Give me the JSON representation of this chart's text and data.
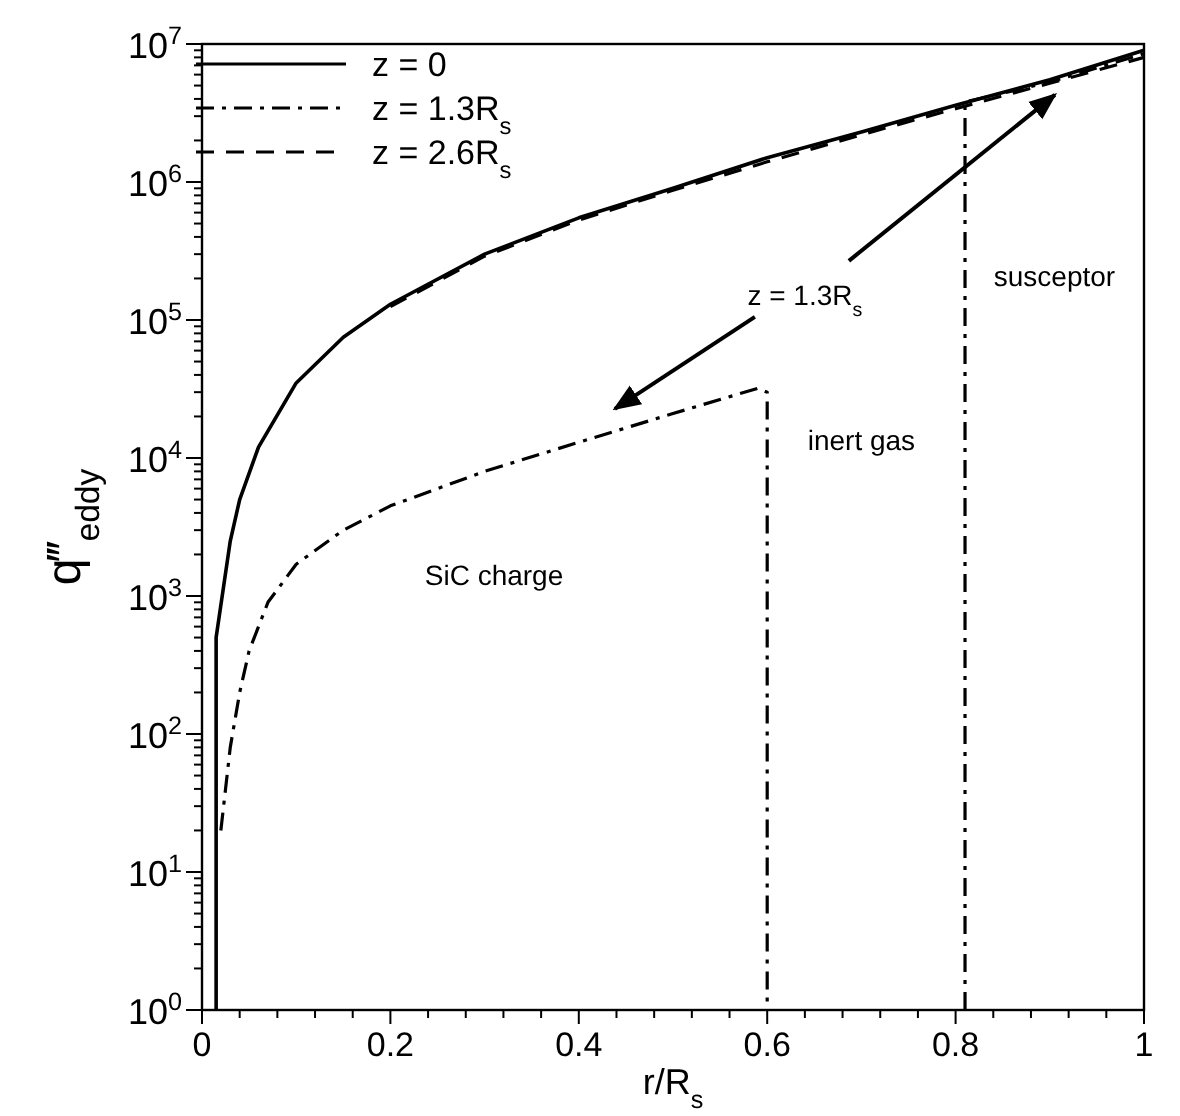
{
  "chart_data": {
    "type": "line",
    "xlabel": "r/R$_{s}$",
    "ylabel": "q‴$_{eddy}$",
    "log": "y",
    "xlim": [
      0,
      1
    ],
    "ylim": [
      1,
      10000000
    ],
    "xticks": [
      0,
      {
        "value": 0.04,
        "label": null
      },
      {
        "value": 0.08,
        "label": null
      },
      {
        "value": 0.12,
        "label": null
      },
      {
        "value": 0.16,
        "label": null
      },
      0.2,
      {
        "value": 0.24,
        "label": null
      },
      {
        "value": 0.28,
        "label": null
      },
      {
        "value": 0.32,
        "label": null
      },
      {
        "value": 0.36,
        "label": null
      },
      0.4,
      {
        "value": 0.44,
        "label": null
      },
      {
        "value": 0.48,
        "label": null
      },
      {
        "value": 0.52,
        "label": null
      },
      {
        "value": 0.56,
        "label": null
      },
      0.6,
      {
        "value": 0.64,
        "label": null
      },
      {
        "value": 0.68,
        "label": null
      },
      {
        "value": 0.72,
        "label": null
      },
      {
        "value": 0.76,
        "label": null
      },
      0.8,
      {
        "value": 0.84,
        "label": null
      },
      {
        "value": 0.88,
        "label": null
      },
      {
        "value": 0.92,
        "label": null
      },
      {
        "value": 0.96,
        "label": null
      },
      1
    ],
    "yticks": [
      {
        "value": 1,
        "label": "10$^{0}$"
      },
      {
        "value": 10,
        "label": "10$^{1}$"
      },
      {
        "value": 100,
        "label": "10$^{2}$"
      },
      {
        "value": 1000,
        "label": "10$^{3}$"
      },
      {
        "value": 10000,
        "label": "10$^{4}$"
      },
      {
        "value": 100000,
        "label": "10$^{5}$"
      },
      {
        "value": 1000000,
        "label": "10$^{6}$"
      },
      {
        "value": 10000000,
        "label": "10$^{7}$"
      }
    ],
    "legend": "top left",
    "grid": false,
    "series": [
      {
        "name": "z = 0",
        "color": "#000000",
        "line_style": "solid",
        "x": [
          0.015,
          0.015,
          0.03,
          0.04,
          0.06,
          0.1,
          0.15,
          0.2,
          0.3,
          0.4,
          0.5,
          0.6,
          0.7,
          0.8,
          0.9,
          1.0
        ],
        "values": [
          1,
          500,
          2500,
          5000,
          12000,
          35000,
          75000,
          130000,
          300000,
          550000,
          900000,
          1500000,
          2300000,
          3600000,
          5500000,
          9000000
        ]
      },
      {
        "name": "z = 1.3R$_{s}$",
        "color": "#000000",
        "line_style": "dashdot",
        "x": [
          0.02,
          0.025,
          0.03,
          0.04,
          0.05,
          0.07,
          0.1,
          0.15,
          0.2,
          0.3,
          0.4,
          0.5,
          0.59,
          0.6,
          0.6,
          0.7,
          0.81,
          0.81,
          0.9,
          1.0
        ],
        "values": [
          20,
          40,
          80,
          200,
          400,
          900,
          1700,
          3000,
          4500,
          8000,
          13000,
          21000,
          32000,
          30000,
          1,
          null,
          1,
          3800000,
          5300000,
          8500000
        ]
      },
      {
        "name": "z = 2.6R$_{s}$",
        "color": "#000000",
        "line_style": "dashed",
        "x": [
          0.2,
          0.3,
          0.4,
          0.5,
          0.6,
          0.7,
          0.8,
          0.9,
          1.0
        ],
        "values": [
          125000,
          290000,
          530000,
          870000,
          1400000,
          2200000,
          3400000,
          5200000,
          8000000
        ]
      }
    ],
    "annotations": [
      "z = 1.3R$_{s}$",
      "SiC charge",
      "inert gas",
      "susceptor"
    ]
  }
}
